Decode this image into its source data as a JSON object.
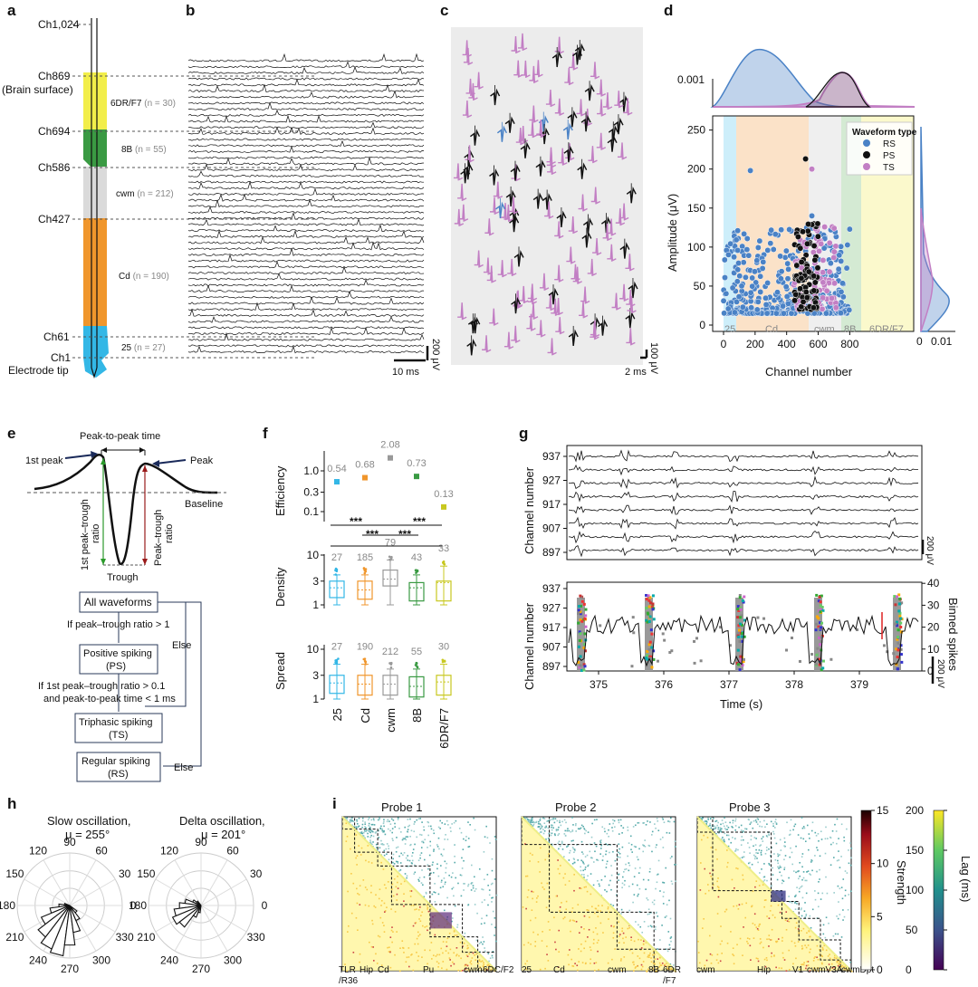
{
  "colors": {
    "yellow": "#f2ee4a",
    "green": "#3a9a43",
    "lightgray": "#dadada",
    "orange": "#f0962c",
    "cyan": "#33b7e6",
    "rs": "#4a82c6",
    "ps": "#111111",
    "ts": "#c27fc4"
  },
  "panel_labels": [
    "a",
    "b",
    "c",
    "d",
    "e",
    "f",
    "g",
    "h",
    "i"
  ],
  "panel_a": {
    "channels": [
      "Ch1,024",
      "Ch869",
      "(Brain surface)",
      "Ch694",
      "Ch586",
      "Ch427",
      "Ch61",
      "Ch1",
      "Electrode tip"
    ],
    "regions": [
      {
        "name": "6DR/F7",
        "n": "(n = 30)"
      },
      {
        "name": "8B",
        "n": "(n = 55)"
      },
      {
        "name": "cwm",
        "n": "(n = 212)"
      },
      {
        "name": "Cd",
        "n": "(n = 190)"
      },
      {
        "name": "25",
        "n": "(n = 27)"
      }
    ]
  },
  "panel_b": {
    "scale_y": "200 μV",
    "scale_x": "10 ms"
  },
  "panel_c": {
    "scale_y": "100 μV",
    "scale_x": "2 ms"
  },
  "panel_d": {
    "ylabel": "Amplitude (μV)",
    "xlabel": "Channel number",
    "yticks": [
      "0",
      "50",
      "100",
      "150",
      "200",
      "250"
    ],
    "xticks": [
      "0",
      "200",
      "400",
      "600",
      "800"
    ],
    "top_ticks": [
      "0.001"
    ],
    "right_ticks": [
      "0",
      "0.01"
    ],
    "region_labels": [
      "25",
      "Cd",
      "cwm",
      "8B",
      "6DR/F7"
    ],
    "legend_title": "Waveform type",
    "legend": [
      "RS",
      "PS",
      "TS"
    ]
  },
  "panel_e": {
    "labels": {
      "p2p": "Peak-to-peak time",
      "first_peak": "1st peak",
      "peak": "Peak",
      "baseline": "Baseline",
      "trough": "Trough",
      "first_ratio_1": "1st peak–trough",
      "first_ratio_2": "ratio",
      "ratio_1": "Peak–trough",
      "ratio_2": "ratio"
    },
    "boxes": [
      "All waveforms",
      "Positive spiking",
      "(PS)",
      "Triphasic spiking",
      "(TS)",
      "Regular spiking",
      "(RS)"
    ],
    "conditions": [
      "If peak–trough ratio > 1",
      "If 1st peak–trough ratio > 0.1",
      "and peak-to-peak time < 1 ms",
      "Else",
      "Else"
    ]
  },
  "panel_f": {
    "categories": [
      "25",
      "Cd",
      "cwm",
      "8B",
      "6DR/F7"
    ],
    "efficiency": {
      "ylabel": "Efficiency",
      "yticks": [
        "0.1",
        "0.3",
        "1.0"
      ],
      "values": [
        0.54,
        0.68,
        2.08,
        0.73,
        0.13
      ],
      "labels": [
        "0.54",
        "0.68",
        "2.08",
        "0.73",
        "0.13"
      ]
    },
    "sig": [
      "***",
      "***",
      "***",
      "***"
    ],
    "density": {
      "ylabel": "Density",
      "yticks": [
        "1",
        "3",
        "10"
      ],
      "n": [
        "27",
        "185",
        "79",
        "43",
        "33"
      ]
    },
    "spread": {
      "ylabel": "Spread",
      "yticks": [
        "1",
        "3",
        "10"
      ],
      "n": [
        "27",
        "190",
        "212",
        "55",
        "30"
      ]
    }
  },
  "panel_g": {
    "top_yticks": [
      "937",
      "927",
      "917",
      "907",
      "897"
    ],
    "bottom_yticks": [
      "937",
      "927",
      "917",
      "907",
      "897"
    ],
    "right_ticks": [
      "0",
      "10",
      "20",
      "30",
      "40"
    ],
    "xticks": [
      "375",
      "376",
      "377",
      "378",
      "379"
    ],
    "ylabel": "Channel number",
    "xlabel": "Time (s)",
    "right_label": "Binned spikes",
    "scale": "200 μV"
  },
  "panel_h": {
    "titles": [
      [
        "Slow oscillation,",
        "μ = 255°"
      ],
      [
        "Delta oscillation,",
        "μ = 201°"
      ]
    ],
    "angles": [
      "90",
      "60",
      "30",
      "0",
      "330",
      "300",
      "270",
      "240",
      "210",
      "180",
      "150",
      "120"
    ]
  },
  "panel_i": {
    "titles": [
      "Probe 1",
      "Probe 2",
      "Probe 3"
    ],
    "probe1_labels": [
      "TLR",
      "/R36",
      "Hip",
      "Cd",
      "Pu",
      "cwm",
      "6DC/F2"
    ],
    "probe2_labels": [
      "25",
      "Cd",
      "cwm",
      "8B",
      "6DR",
      "/F7"
    ],
    "probe3_labels": [
      "cwm",
      "Hip",
      "V1",
      "cwmV3A",
      "cwmDpt"
    ],
    "strength": {
      "label": "Strength",
      "ticks": [
        "0",
        "5",
        "10",
        "15"
      ]
    },
    "lag": {
      "label": "Lag (ms)",
      "ticks": [
        "0",
        "50",
        "100",
        "150",
        "200"
      ]
    }
  }
}
